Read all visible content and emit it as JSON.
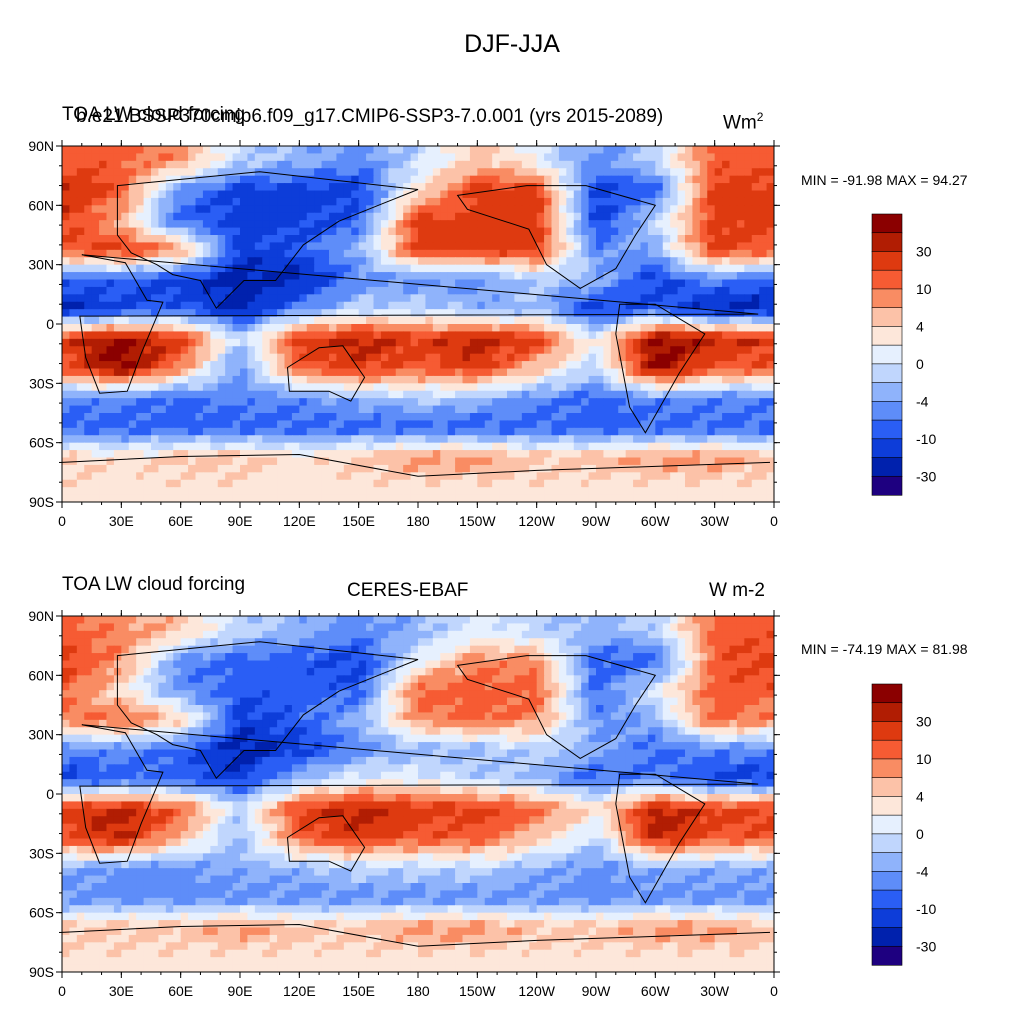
{
  "figure": {
    "title": "DJF-JJA"
  },
  "colors": {
    "scale": [
      "#1e0080",
      "#0021ad",
      "#0d3dd9",
      "#2a5ef5",
      "#5e8df9",
      "#8fb3fb",
      "#c0d6fd",
      "#e6f0fe",
      "#fde7da",
      "#fcc2a8",
      "#f98c63",
      "#f65b33",
      "#de3a10",
      "#b11d03",
      "#8b0000"
    ],
    "land_outline": "#000000"
  },
  "colorbar": {
    "labels": [
      "30",
      "10",
      "4",
      "0",
      "-4",
      "-10",
      "-30"
    ]
  },
  "panels": [
    {
      "id": "model",
      "left_title": "TOA LW cloud forcing",
      "center_title": "b.e21.BSSP370cmip6.f09_g17.CMIP6-SSP3-7.0.001 (yrs 2015-2089)",
      "units": "Wm",
      "units_superscript": "2",
      "stats": "MIN = -91.98 MAX =  94.27",
      "lat_labels": [
        "90N",
        "60N",
        "30N",
        "0",
        "30S",
        "60S",
        "90S"
      ],
      "lon_labels": [
        "0",
        "30E",
        "60E",
        "90E",
        "120E",
        "150E",
        "180",
        "150W",
        "120W",
        "90W",
        "60W",
        "30W",
        "0"
      ]
    },
    {
      "id": "obs",
      "left_title": "TOA LW cloud forcing",
      "center_title": "CERES-EBAF",
      "units": "W m-2",
      "units_superscript": "",
      "stats": "MIN = -74.19 MAX =  81.98",
      "lat_labels": [
        "90N",
        "60N",
        "30N",
        "0",
        "30S",
        "60S",
        "90S"
      ],
      "lon_labels": [
        "0",
        "30E",
        "60E",
        "90E",
        "120E",
        "150E",
        "180",
        "150W",
        "120W",
        "90W",
        "60W",
        "30W",
        "0"
      ]
    }
  ]
}
